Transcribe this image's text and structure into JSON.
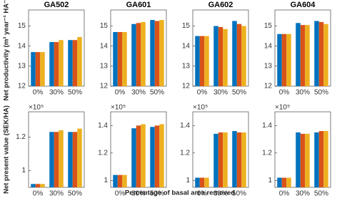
{
  "figure_xlabel": "Percentage of basal area removed",
  "chart_data": [
    {
      "type": "bar",
      "title": "GA502",
      "ylabel": "Net productivity (m³ year⁻¹ HA⁻¹)",
      "categories": [
        "0%",
        "30%",
        "50%"
      ],
      "series": [
        {
          "color": "#0072bd",
          "values": [
            13.7,
            14.2,
            14.3
          ]
        },
        {
          "color": "#d95319",
          "values": [
            13.7,
            14.2,
            14.3
          ]
        },
        {
          "color": "#edb120",
          "values": [
            13.7,
            14.3,
            14.45
          ]
        }
      ],
      "ylim": [
        12,
        15.8
      ],
      "yticks": [
        12,
        13,
        14,
        15
      ]
    },
    {
      "type": "bar",
      "title": "GA601",
      "categories": [
        "0%",
        "30%",
        "50%"
      ],
      "series": [
        {
          "color": "#0072bd",
          "values": [
            14.7,
            15.1,
            15.3
          ]
        },
        {
          "color": "#d95319",
          "values": [
            14.7,
            15.15,
            15.25
          ]
        },
        {
          "color": "#edb120",
          "values": [
            14.7,
            15.2,
            15.3
          ]
        }
      ],
      "ylim": [
        12,
        15.8
      ],
      "yticks": [
        12,
        13,
        14,
        15
      ]
    },
    {
      "type": "bar",
      "title": "GA602",
      "categories": [
        "0%",
        "30%",
        "50%"
      ],
      "series": [
        {
          "color": "#0072bd",
          "values": [
            14.5,
            15.0,
            15.25
          ]
        },
        {
          "color": "#d95319",
          "values": [
            14.5,
            14.95,
            15.1
          ]
        },
        {
          "color": "#edb120",
          "values": [
            14.5,
            14.85,
            15.0
          ]
        }
      ],
      "ylim": [
        12,
        15.8
      ],
      "yticks": [
        12,
        13,
        14,
        15
      ]
    },
    {
      "type": "bar",
      "title": "GA604",
      "categories": [
        "0%",
        "30%",
        "50%"
      ],
      "series": [
        {
          "color": "#0072bd",
          "values": [
            14.6,
            15.15,
            15.25
          ]
        },
        {
          "color": "#d95319",
          "values": [
            14.6,
            15.05,
            15.2
          ]
        },
        {
          "color": "#edb120",
          "values": [
            14.6,
            15.05,
            15.1
          ]
        }
      ],
      "ylim": [
        12,
        15.8
      ],
      "yticks": [
        12,
        13,
        14,
        15
      ]
    },
    {
      "type": "bar",
      "multiplier": "×10⁵",
      "ylabel": "Net present value (SEK/HA)",
      "categories": [
        "0%",
        "30%",
        "50%"
      ],
      "series": [
        {
          "color": "#0072bd",
          "values": [
            0.92,
            1.23,
            1.23
          ]
        },
        {
          "color": "#d95319",
          "values": [
            0.92,
            1.23,
            1.23
          ]
        },
        {
          "color": "#edb120",
          "values": [
            0.92,
            1.24,
            1.25
          ]
        }
      ],
      "ylim": [
        0.9,
        1.35
      ],
      "yticks": [
        1,
        1.2
      ]
    },
    {
      "type": "bar",
      "multiplier": "×10⁵",
      "categories": [
        "0%",
        "30%",
        "50%"
      ],
      "series": [
        {
          "color": "#0072bd",
          "values": [
            1.04,
            1.38,
            1.39
          ]
        },
        {
          "color": "#d95319",
          "values": [
            1.04,
            1.4,
            1.4
          ]
        },
        {
          "color": "#edb120",
          "values": [
            1.04,
            1.41,
            1.41
          ]
        }
      ],
      "ylim": [
        0.95,
        1.5
      ],
      "yticks": [
        1,
        1.2,
        1.4
      ]
    },
    {
      "type": "bar",
      "multiplier": "×10⁵",
      "categories": [
        "0%",
        "30%",
        "50%"
      ],
      "series": [
        {
          "color": "#0072bd",
          "values": [
            1.02,
            1.34,
            1.36
          ]
        },
        {
          "color": "#d95319",
          "values": [
            1.02,
            1.35,
            1.35
          ]
        },
        {
          "color": "#edb120",
          "values": [
            1.02,
            1.35,
            1.35
          ]
        }
      ],
      "ylim": [
        0.95,
        1.5
      ],
      "yticks": [
        1,
        1.2,
        1.4
      ]
    },
    {
      "type": "bar",
      "multiplier": "×10⁵",
      "categories": [
        "0%",
        "30%",
        "50%"
      ],
      "series": [
        {
          "color": "#0072bd",
          "values": [
            1.02,
            1.35,
            1.35
          ]
        },
        {
          "color": "#d95319",
          "values": [
            1.02,
            1.34,
            1.36
          ]
        },
        {
          "color": "#edb120",
          "values": [
            1.02,
            1.34,
            1.36
          ]
        }
      ],
      "ylim": [
        0.95,
        1.5
      ],
      "yticks": [
        1,
        1.2,
        1.4
      ]
    }
  ]
}
